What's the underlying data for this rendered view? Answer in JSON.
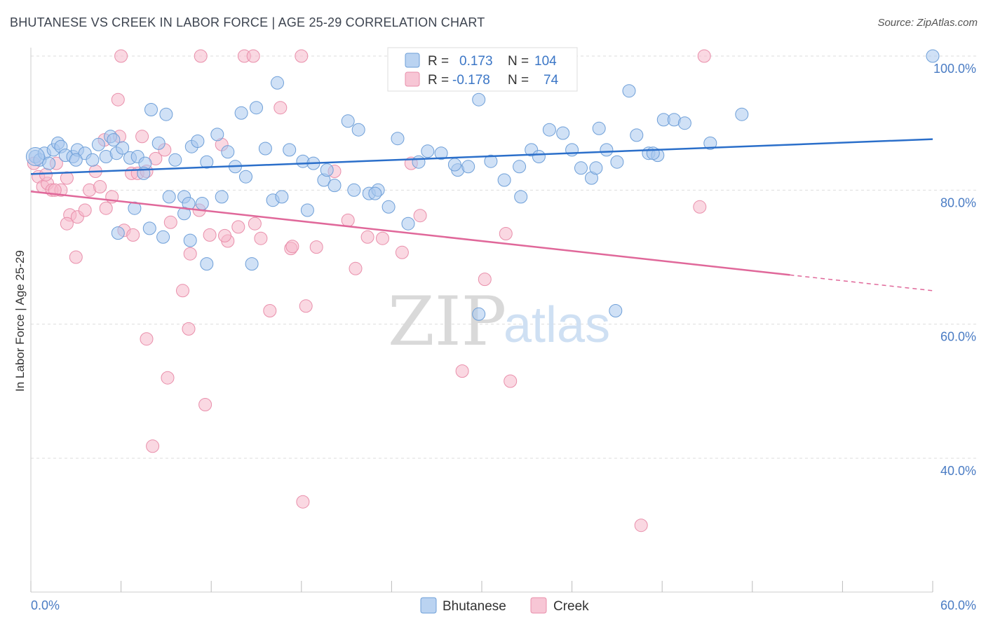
{
  "title": "BHUTANESE VS CREEK IN LABOR FORCE | AGE 25-29 CORRELATION CHART",
  "source": "Source: ZipAtlas.com",
  "watermark": {
    "zip": "ZIP",
    "atlas": "atlas"
  },
  "colors": {
    "blue_fill": "#a9c8ee",
    "blue_stroke": "#6e9fd8",
    "blue_line": "#2b6fca",
    "pink_fill": "#f5b8cb",
    "pink_stroke": "#e98fab",
    "pink_line": "#e0689a",
    "grid": "#dddddd",
    "tick_text": "#4a7cc4"
  },
  "chart_data": {
    "type": "scatter",
    "xlabel": "",
    "ylabel": "In Labor Force | Age 25-29",
    "xlim": [
      0,
      60
    ],
    "ylim": [
      20,
      104
    ],
    "y_ticks": [
      {
        "value": 40,
        "label": "40.0%"
      },
      {
        "value": 60,
        "label": "60.0%"
      },
      {
        "value": 80,
        "label": "80.0%"
      },
      {
        "value": 100,
        "label": "100.0%"
      }
    ],
    "x_tick_labels": {
      "min": "0.0%",
      "max": "60.0%"
    },
    "x_minor_ticks": [
      0,
      6,
      12,
      18,
      24,
      30,
      36,
      42,
      48,
      54,
      60
    ],
    "legend": {
      "placement": "bottom-center",
      "items": [
        {
          "label": "Bhutanese",
          "color": "#a9c8ee"
        },
        {
          "label": "Creek",
          "color": "#f5b8cb"
        }
      ]
    },
    "stats": [
      {
        "r_label": "R =",
        "r_value": "0.173",
        "n_label": "N =",
        "n_value": "104",
        "color": "#a9c8ee"
      },
      {
        "r_label": "R =",
        "r_value": "-0.178",
        "n_label": "N =",
        "n_value": "74",
        "color": "#f5b8cb"
      }
    ],
    "series": [
      {
        "name": "Bhutanese",
        "trend": {
          "x0": 0,
          "y0": 82.4,
          "x1": 60,
          "y1": 87.6,
          "dash_from": null
        },
        "points": [
          [
            0.3,
            85
          ],
          [
            0.6,
            84.5
          ],
          [
            0.9,
            85.5
          ],
          [
            1.2,
            84
          ],
          [
            1.5,
            86
          ],
          [
            1.8,
            87
          ],
          [
            2,
            86.5
          ],
          [
            2.3,
            85.2
          ],
          [
            2.8,
            85
          ],
          [
            3.1,
            86
          ],
          [
            3.6,
            85.5
          ],
          [
            4.1,
            84.5
          ],
          [
            4.5,
            86.8
          ],
          [
            5,
            85
          ],
          [
            5.3,
            88
          ],
          [
            5.7,
            85.5
          ],
          [
            6.1,
            86.3
          ],
          [
            6.6,
            84.8
          ],
          [
            7.1,
            85
          ],
          [
            7.6,
            84
          ],
          [
            8,
            92
          ],
          [
            8.5,
            87
          ],
          [
            9,
            91.3
          ],
          [
            9.6,
            84.5
          ],
          [
            10.2,
            79
          ],
          [
            10.7,
            86.5
          ],
          [
            11.1,
            87.3
          ],
          [
            11.7,
            84.2
          ],
          [
            12.4,
            88.3
          ],
          [
            13.1,
            85.7
          ],
          [
            13.6,
            83.5
          ],
          [
            14.3,
            82
          ],
          [
            15,
            92.3
          ],
          [
            15.6,
            86.2
          ],
          [
            16.4,
            96
          ],
          [
            17.2,
            86
          ],
          [
            18.1,
            84.3
          ],
          [
            18.8,
            84
          ],
          [
            19.5,
            81.5
          ],
          [
            20.2,
            80.7
          ],
          [
            21.1,
            90.3
          ],
          [
            21.8,
            89
          ],
          [
            22.5,
            79.5
          ],
          [
            23.1,
            80
          ],
          [
            23.8,
            77.5
          ],
          [
            24.4,
            87.7
          ],
          [
            25.1,
            75
          ],
          [
            25.8,
            84.2
          ],
          [
            26.4,
            85.8
          ],
          [
            27.3,
            85.5
          ],
          [
            28.4,
            83
          ],
          [
            29.1,
            83.5
          ],
          [
            29.8,
            93.5
          ],
          [
            30.6,
            84.3
          ],
          [
            31.5,
            81.5
          ],
          [
            32.5,
            83.5
          ],
          [
            33.3,
            86
          ],
          [
            33.8,
            85
          ],
          [
            34.5,
            89
          ],
          [
            35.4,
            88.5
          ],
          [
            36,
            86
          ],
          [
            36.6,
            83.3
          ],
          [
            37.3,
            81.8
          ],
          [
            37.8,
            89.2
          ],
          [
            38.3,
            86
          ],
          [
            39,
            84.2
          ],
          [
            39.8,
            94.8
          ],
          [
            40.3,
            88.2
          ],
          [
            41.1,
            85.5
          ],
          [
            41.7,
            85.2
          ],
          [
            42.1,
            90.5
          ],
          [
            42.8,
            90.5
          ],
          [
            43.5,
            90
          ],
          [
            45.2,
            87
          ],
          [
            47.3,
            91.3
          ],
          [
            60,
            100
          ],
          [
            3,
            84.5
          ],
          [
            5.5,
            87.5
          ],
          [
            7.5,
            82.5
          ],
          [
            9.2,
            79
          ],
          [
            10.5,
            78
          ],
          [
            11.4,
            78
          ],
          [
            12.7,
            79
          ],
          [
            14.7,
            69
          ],
          [
            16.1,
            78.5
          ],
          [
            16.7,
            79
          ],
          [
            18.4,
            77
          ],
          [
            19.7,
            83
          ],
          [
            21.5,
            80
          ],
          [
            22.9,
            79.5
          ],
          [
            8.8,
            73
          ],
          [
            7.9,
            74.3
          ],
          [
            10.6,
            72.5
          ],
          [
            11.7,
            69
          ],
          [
            29.8,
            61.5
          ],
          [
            37.6,
            83.3
          ],
          [
            41.4,
            85.5
          ],
          [
            38.9,
            62
          ],
          [
            14,
            91.5
          ],
          [
            5.8,
            73.6
          ],
          [
            6.9,
            77.3
          ],
          [
            10.2,
            76.5
          ],
          [
            28.2,
            83.8
          ],
          [
            32.6,
            79
          ]
        ]
      },
      {
        "name": "Creek",
        "trend": {
          "x0": 0,
          "y0": 79.8,
          "x1": 60,
          "y1": 65.0,
          "dash_from": 50.5
        },
        "points": [
          [
            0.2,
            84
          ],
          [
            0.5,
            82
          ],
          [
            0.8,
            80.5
          ],
          [
            1.1,
            81
          ],
          [
            1.4,
            80
          ],
          [
            1.7,
            84
          ],
          [
            2,
            80
          ],
          [
            2.4,
            81.8
          ],
          [
            2.6,
            76.3
          ],
          [
            3.1,
            76
          ],
          [
            3.6,
            77
          ],
          [
            3.9,
            80
          ],
          [
            4.3,
            82.8
          ],
          [
            4.6,
            80.5
          ],
          [
            5,
            77.3
          ],
          [
            5.4,
            79
          ],
          [
            5.9,
            88
          ],
          [
            6.2,
            74
          ],
          [
            6.7,
            82.5
          ],
          [
            7.1,
            82.5
          ],
          [
            7.4,
            88
          ],
          [
            7.7,
            82.8
          ],
          [
            8.3,
            84.7
          ],
          [
            8.9,
            86
          ],
          [
            9.3,
            75.2
          ],
          [
            10.1,
            65
          ],
          [
            10.6,
            70.5
          ],
          [
            11.2,
            77
          ],
          [
            11.9,
            73.3
          ],
          [
            12.7,
            86.8
          ],
          [
            13.1,
            72.4
          ],
          [
            13.8,
            74.5
          ],
          [
            14.9,
            75
          ],
          [
            15.3,
            72.8
          ],
          [
            15.9,
            62
          ],
          [
            16.6,
            92.3
          ],
          [
            17.3,
            71.3
          ],
          [
            18.3,
            62.7
          ],
          [
            19,
            71.5
          ],
          [
            20.2,
            82.8
          ],
          [
            21.1,
            75.5
          ],
          [
            21.6,
            68.3
          ],
          [
            22.4,
            73
          ],
          [
            23.4,
            72.8
          ],
          [
            24.7,
            70.7
          ],
          [
            25.3,
            84
          ],
          [
            25.9,
            76.2
          ],
          [
            28.7,
            53
          ],
          [
            30.2,
            66.7
          ],
          [
            31.6,
            73.5
          ],
          [
            31.9,
            51.5
          ],
          [
            40.6,
            30
          ],
          [
            44.5,
            77.5
          ],
          [
            44.8,
            100
          ],
          [
            6,
            100
          ],
          [
            11.3,
            100
          ],
          [
            14.2,
            100
          ],
          [
            14.8,
            100
          ],
          [
            18,
            100
          ],
          [
            3,
            70
          ],
          [
            6.8,
            73.3
          ],
          [
            7.7,
            57.8
          ],
          [
            9.1,
            52
          ],
          [
            10.5,
            59.3
          ],
          [
            11.6,
            48
          ],
          [
            8.1,
            41.8
          ],
          [
            18.1,
            33.5
          ],
          [
            4.9,
            87.5
          ],
          [
            5.8,
            93.5
          ],
          [
            2.4,
            75
          ],
          [
            1,
            82.3
          ],
          [
            1.6,
            80
          ],
          [
            12.9,
            73.2
          ],
          [
            17.4,
            71.6
          ]
        ]
      }
    ]
  }
}
